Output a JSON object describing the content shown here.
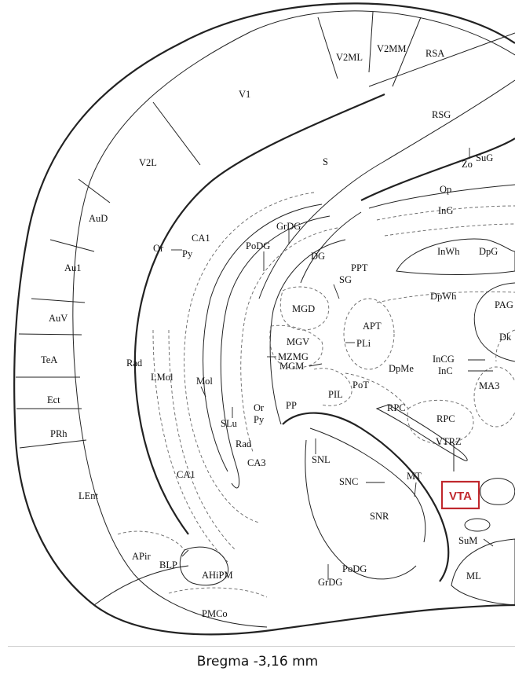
{
  "caption": "Bregma -3,16 mm",
  "highlight": {
    "label": "VTA",
    "color": "#c0282d"
  },
  "regions": {
    "V2MM": "V2MM",
    "V2ML": "V2ML",
    "RSA": "RSA",
    "V1": "V1",
    "RSG": "RSG",
    "V2L": "V2L",
    "S": "S",
    "Zo": "Zo",
    "SuG": "SuG",
    "Op": "Op",
    "AuD": "AuD",
    "InG": "InG",
    "Or_upper": "Or",
    "Py_upper": "Py",
    "CA1_upper": "CA1",
    "GrDG_upper": "GrDG",
    "PoDG_upper": "PoDG",
    "DG": "DG",
    "InWh": "InWh",
    "DpG": "DpG",
    "Au1": "Au1",
    "PPT": "PPT",
    "SG": "SG",
    "DpWh": "DpWh",
    "PAG": "PAG",
    "MGD": "MGD",
    "AuV": "AuV",
    "APT": "APT",
    "MGV": "MGV",
    "PLi": "PLi",
    "Dk": "Dk",
    "InCG": "InCG",
    "InC": "InC",
    "MZMG": "MZMG",
    "MGM": "MGM",
    "TeA": "TeA",
    "Rad_left": "Rad",
    "DpMe": "DpMe",
    "MA3": "MA3",
    "LMol": "LMol",
    "Mol": "Mol",
    "PoT": "PoT",
    "PIL": "PIL",
    "Ect": "Ect",
    "Or_lower": "Or",
    "PP": "PP",
    "RPC_left": "RPC",
    "RPC_right": "RPC",
    "Py_lower": "Py",
    "SLu": "SLu",
    "PRh": "PRh",
    "VTRZ": "VTRZ",
    "Rad_lower": "Rad",
    "CA3": "CA3",
    "SNL": "SNL",
    "CA1_lower": "CA1",
    "MT": "MT",
    "SNC": "SNC",
    "LEnt": "LEnt",
    "SNR": "SNR",
    "SuM": "SuM",
    "APir": "APir",
    "BLP": "BLP",
    "PoDG_lower": "PoDG",
    "AHiPM": "AHiPM",
    "ML": "ML",
    "GrDG_lower": "GrDG",
    "PMCo": "PMCo"
  }
}
